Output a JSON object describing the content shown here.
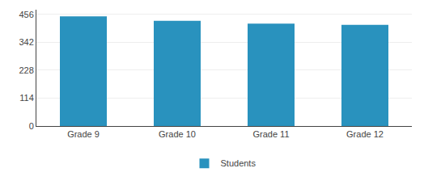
{
  "chart_data": {
    "type": "bar",
    "categories": [
      "Grade 9",
      "Grade 10",
      "Grade 11",
      "Grade 12"
    ],
    "series": [
      {
        "name": "Students",
        "color": "#2992BE",
        "values": [
          448,
          430,
          418,
          413
        ]
      }
    ],
    "ylim": [
      0,
      475
    ],
    "yticks": [
      0,
      114,
      228,
      342,
      456
    ],
    "grid": true,
    "legend": "bottom"
  }
}
